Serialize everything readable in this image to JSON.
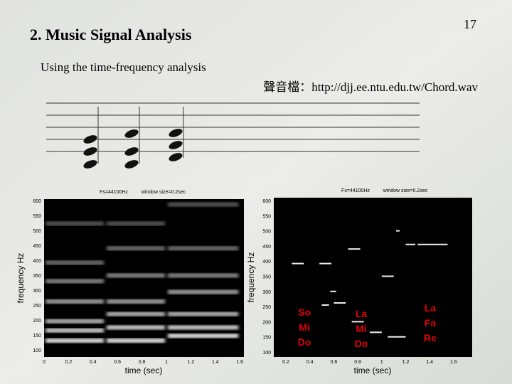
{
  "slide_number": "17",
  "title": "2. Music Signal Analysis",
  "subtitle": "Using the time-frequency analysis",
  "source": "聲音檔：http://djj.ee.ntu.edu.tw/Chord.wav",
  "figures": [
    {
      "header_left": "Fs=44100Hz",
      "header_right": "window size=0.2sec",
      "ylabel": "frequency Hz",
      "xlabel": "time (sec)",
      "yticks": [
        "600",
        "550",
        "500",
        "450",
        "400",
        "350",
        "300",
        "250",
        "200",
        "150",
        "100"
      ],
      "xticks": [
        "0",
        "0.2",
        "0.4",
        "0.6",
        "0.8",
        "1",
        "1.2",
        "1.4",
        "1.6"
      ]
    },
    {
      "header_left": "Fs=44100Hz",
      "header_right": "window size=0.2sec",
      "ylabel": "frequency Hz",
      "xlabel": "time (sec)",
      "yticks": [
        "600",
        "550",
        "500",
        "450",
        "400",
        "350",
        "300",
        "250",
        "200",
        "150",
        "100"
      ],
      "xticks": [
        "0.2",
        "0.4",
        "0.6",
        "0.8",
        "1",
        "1.2",
        "1.4",
        "1.6"
      ],
      "annotations": [
        [
          "So",
          "Mi",
          "Do"
        ],
        [
          "La",
          "Mi",
          "Do"
        ],
        [
          "La",
          "Fa",
          "Re"
        ]
      ]
    }
  ]
}
